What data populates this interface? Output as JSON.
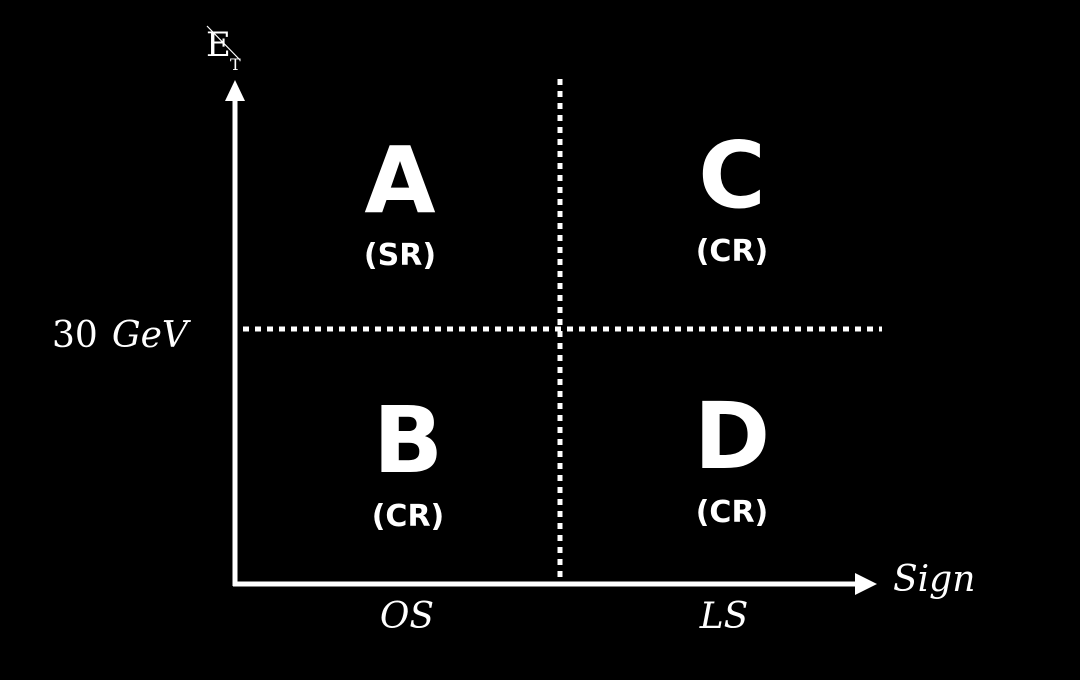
{
  "colors": {
    "background": "#000000",
    "foreground": "#ffffff"
  },
  "axes": {
    "y_label_main": "E",
    "y_label_sub": "T",
    "x_label": "Sign",
    "threshold_value": "30",
    "threshold_unit": "GeV",
    "x_categories": [
      "OS",
      "LS"
    ]
  },
  "regions": [
    {
      "id": "A",
      "letter": "A",
      "tag": "(SR)"
    },
    {
      "id": "B",
      "letter": "B",
      "tag": "(CR)"
    },
    {
      "id": "C",
      "letter": "C",
      "tag": "(CR)"
    },
    {
      "id": "D",
      "letter": "D",
      "tag": "(CR)"
    }
  ]
}
